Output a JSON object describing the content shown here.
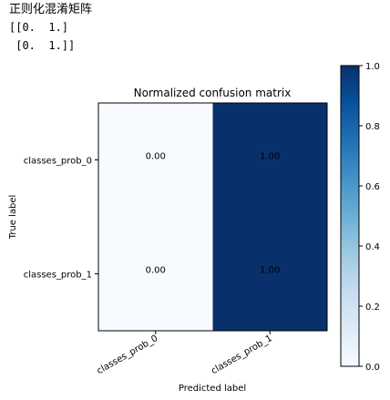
{
  "output": {
    "heading": "正则化混淆矩阵",
    "matrix_lines": [
      "[[0.  1.]",
      " [0.  1.]]"
    ]
  },
  "chart_data": {
    "type": "heatmap",
    "title": "Normalized confusion matrix",
    "xlabel": "Predicted label",
    "ylabel": "True label",
    "x_categories": [
      "classes_prob_0",
      "classes_prob_1"
    ],
    "y_categories": [
      "classes_prob_0",
      "classes_prob_1"
    ],
    "values": [
      [
        0.0,
        1.0
      ],
      [
        0.0,
        1.0
      ]
    ],
    "cell_labels": [
      [
        "0.00",
        "1.00"
      ],
      [
        "0.00",
        "1.00"
      ]
    ],
    "colormap": "Blues",
    "colormap_low": "#f7fbff",
    "colormap_high": "#08306b",
    "colorbar": {
      "range": [
        0.0,
        1.0
      ],
      "ticks": [
        0.0,
        0.2,
        0.4,
        0.6,
        0.8,
        1.0
      ],
      "tick_labels": [
        "0.0",
        "0.2",
        "0.4",
        "0.6",
        "0.8",
        "1.0"
      ]
    },
    "grid": false
  }
}
